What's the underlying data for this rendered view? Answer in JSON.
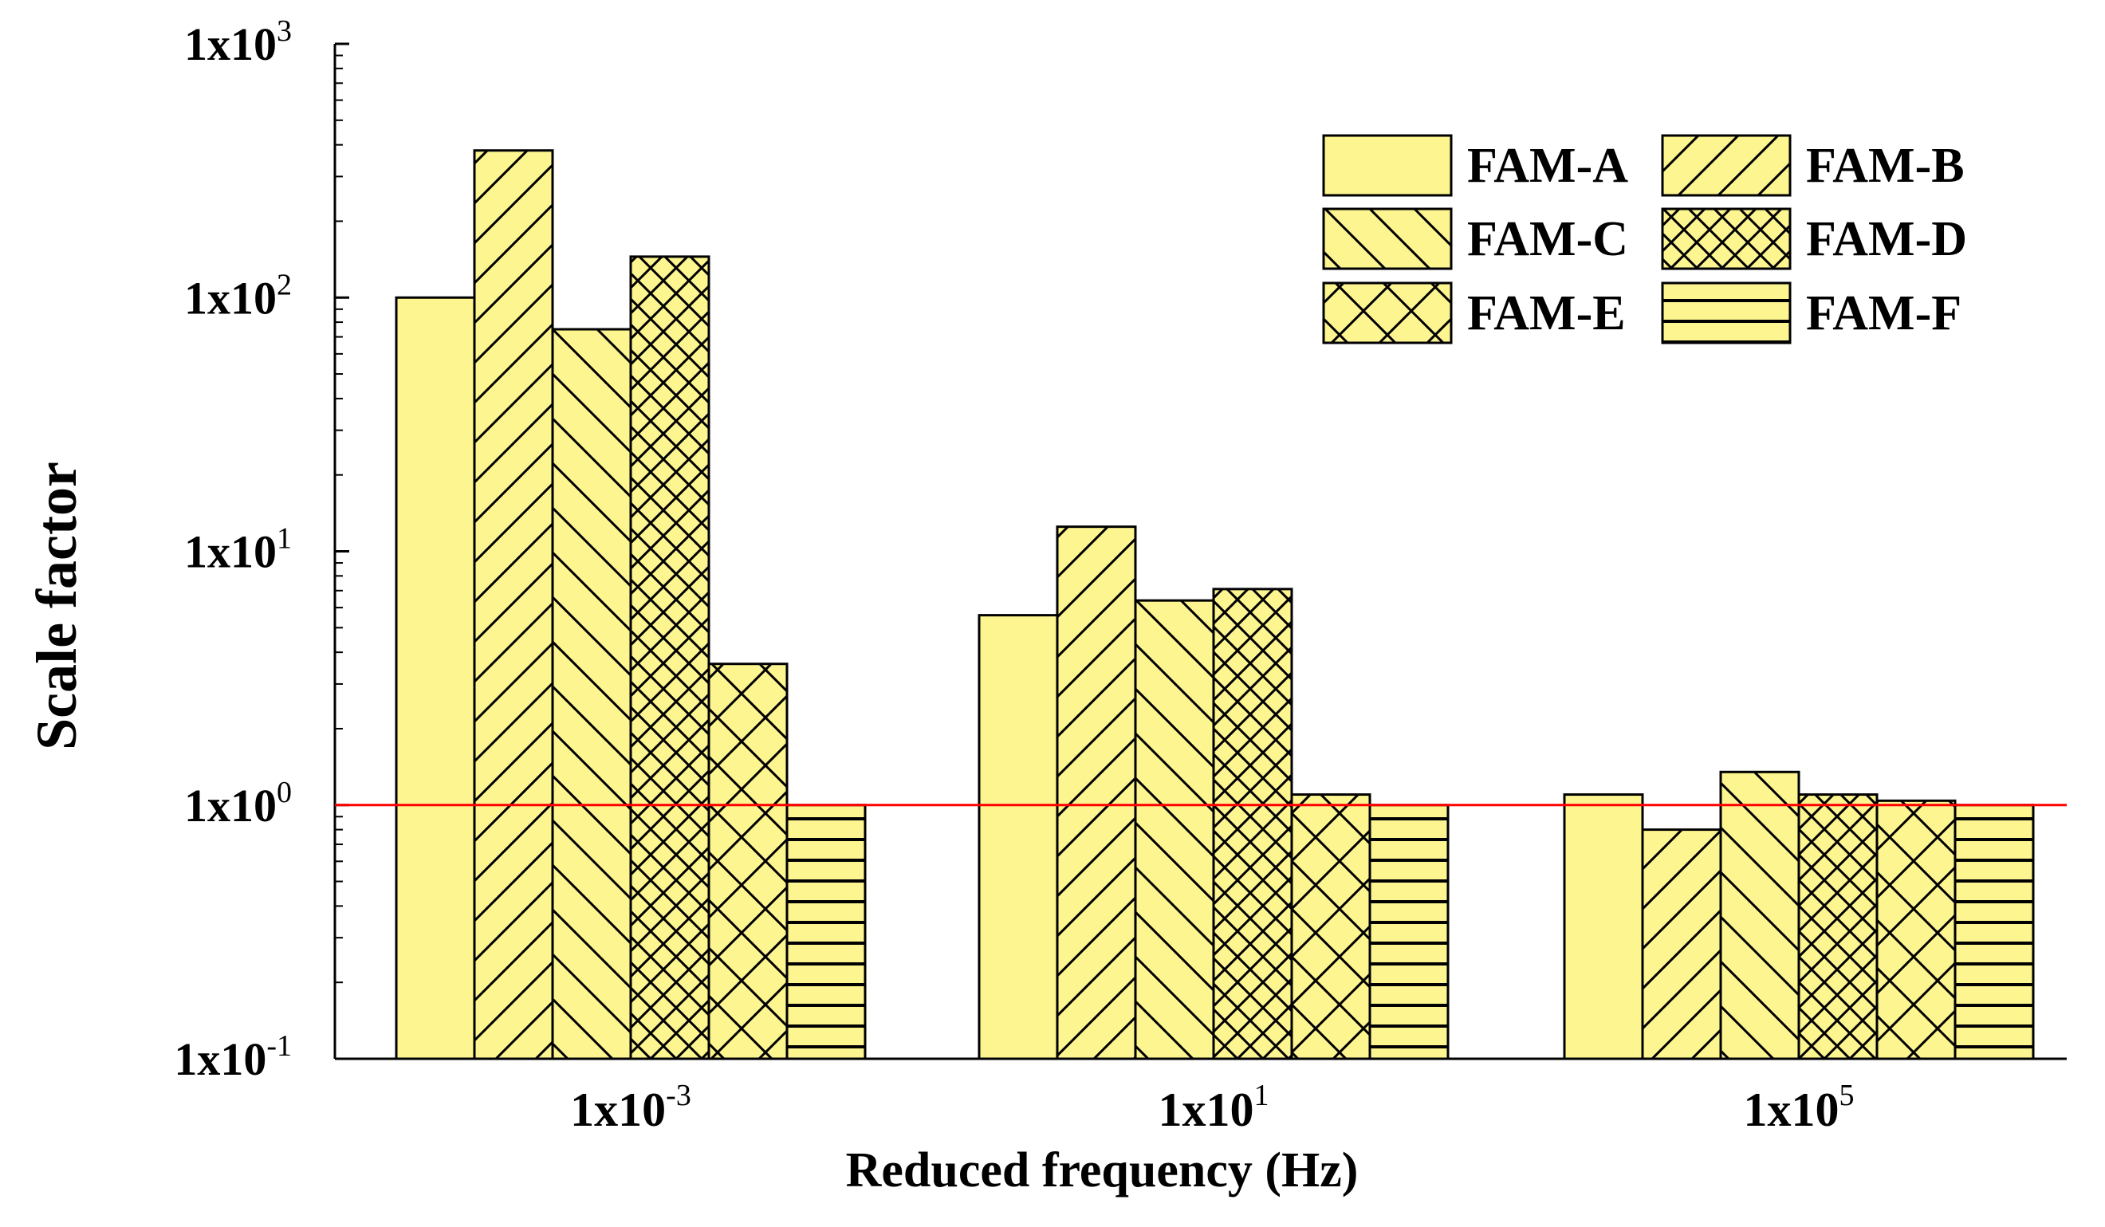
{
  "chart_data": {
    "type": "bar",
    "title": "",
    "xlabel": "Reduced frequency (Hz)",
    "ylabel": "Scale factor",
    "yscale": "log",
    "ylim": [
      0.1,
      1000
    ],
    "grid": false,
    "legend_position": "top-right",
    "categories": [
      {
        "base": "1x10",
        "exp": "-3"
      },
      {
        "base": "1x10",
        "exp": "1"
      },
      {
        "base": "1x10",
        "exp": "5"
      }
    ],
    "yticks": [
      {
        "value": 0.1,
        "base": "1x10",
        "exp": "-1"
      },
      {
        "value": 1,
        "base": "1x10",
        "exp": "0"
      },
      {
        "value": 10,
        "base": "1x10",
        "exp": "1"
      },
      {
        "value": 100,
        "base": "1x10",
        "exp": "2"
      },
      {
        "value": 1000,
        "base": "1x10",
        "exp": "3"
      }
    ],
    "series": [
      {
        "name": "FAM-A",
        "pattern": "none",
        "values": [
          100,
          5.6,
          1.1
        ]
      },
      {
        "name": "FAM-B",
        "pattern": "diag-up",
        "values": [
          380,
          12.5,
          0.8
        ]
      },
      {
        "name": "FAM-C",
        "pattern": "diag-down",
        "values": [
          75,
          6.4,
          1.35
        ]
      },
      {
        "name": "FAM-D",
        "pattern": "dense-cross",
        "values": [
          145,
          7.1,
          1.1
        ]
      },
      {
        "name": "FAM-E",
        "pattern": "cross",
        "values": [
          3.6,
          1.1,
          1.04
        ]
      },
      {
        "name": "FAM-F",
        "pattern": "horizontal",
        "values": [
          1.0,
          1.0,
          1.0
        ]
      }
    ],
    "reference_line": {
      "value": 1,
      "color": "#ff0000"
    },
    "colors": {
      "bar_fill": "#fdf58f",
      "stroke": "#000000"
    }
  }
}
